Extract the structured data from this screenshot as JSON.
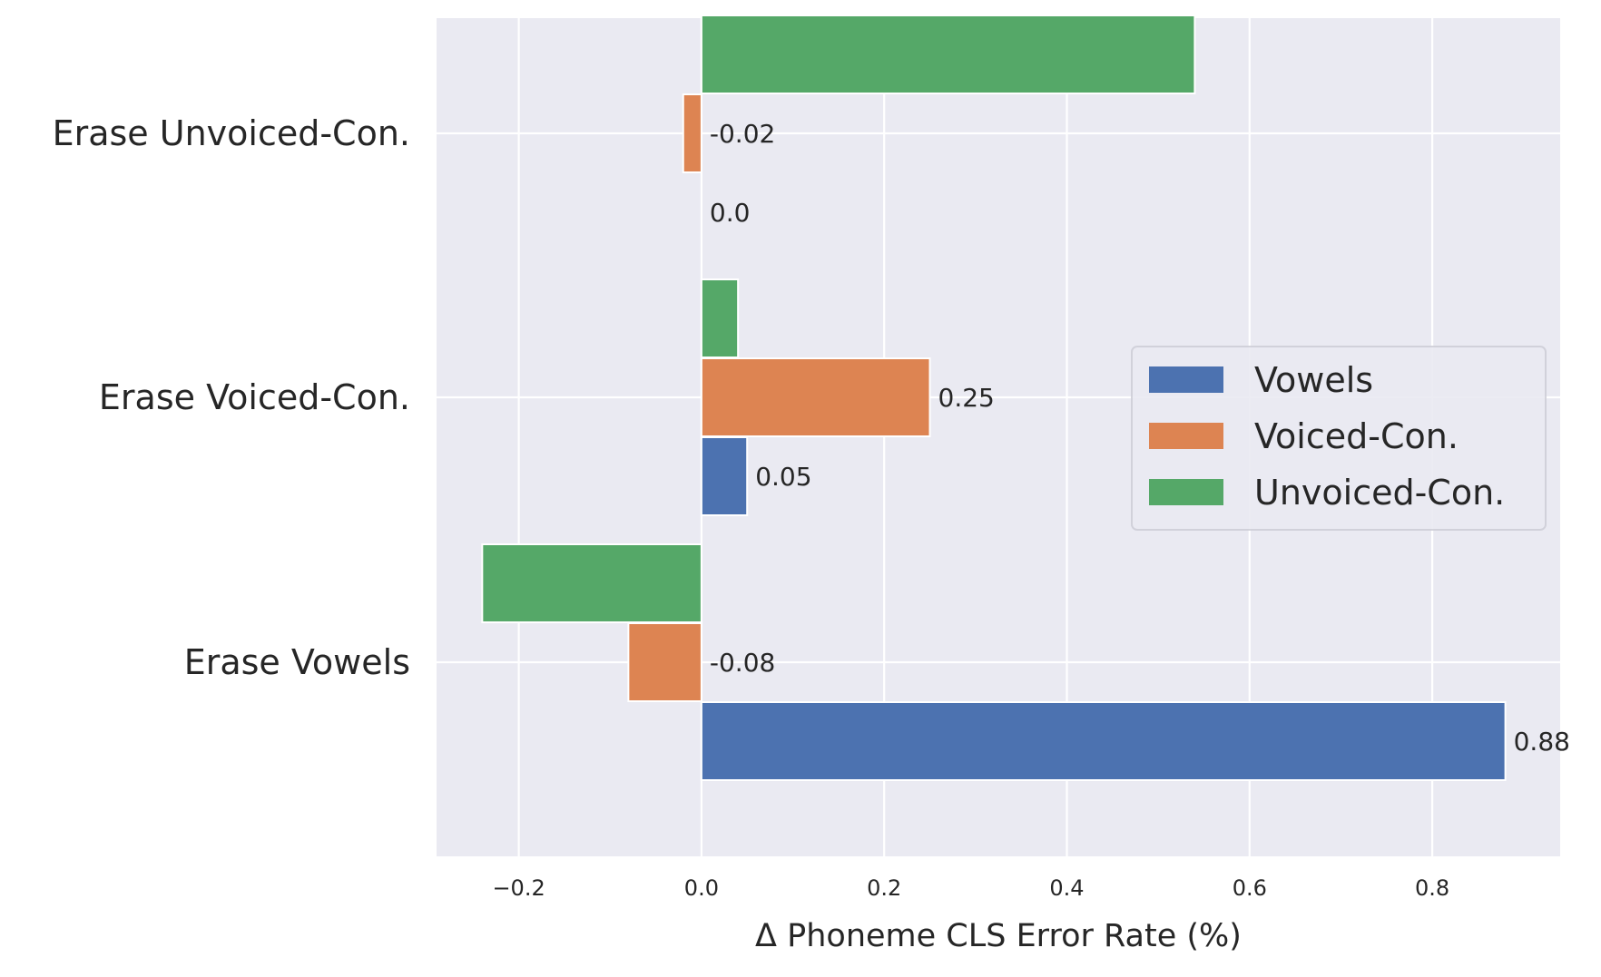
{
  "chart_data": {
    "type": "bar",
    "orientation": "horizontal",
    "categories": [
      "Erase Vowels",
      "Erase Voiced-Con.",
      "Erase Unvoiced-Con."
    ],
    "series": [
      {
        "name": "Vowels",
        "color": "#4c72b0",
        "values": [
          0.88,
          0.05,
          0.0
        ],
        "labels": [
          "0.88",
          "0.05",
          "0.0"
        ]
      },
      {
        "name": "Voiced-Con.",
        "color": "#dd8452",
        "values": [
          -0.08,
          0.25,
          -0.02
        ],
        "labels": [
          "-0.08",
          "0.25",
          "-0.02"
        ]
      },
      {
        "name": "Unvoiced-Con.",
        "color": "#55a868",
        "values": [
          -0.24,
          0.04,
          0.54
        ],
        "labels": [
          null,
          null,
          null
        ]
      }
    ],
    "xlabel": "Δ Phoneme CLS Error Rate (%)",
    "ylabel": "",
    "xlim": [
      -0.29,
      0.94
    ],
    "xticks": [
      -0.2,
      0.0,
      0.2,
      0.4,
      0.6,
      0.8
    ],
    "xtick_labels": [
      "−0.2",
      "0.0",
      "0.2",
      "0.4",
      "0.6",
      "0.8"
    ],
    "grid": true,
    "background": "#eaeaf2",
    "legend_position": "center-right"
  }
}
